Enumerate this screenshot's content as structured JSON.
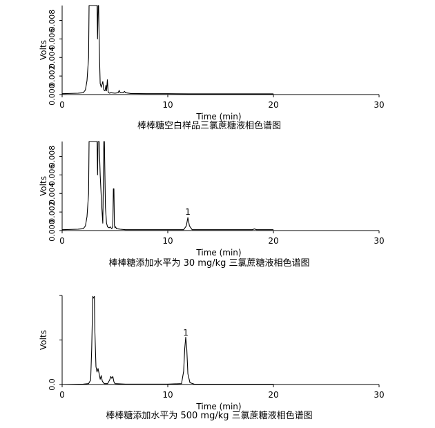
{
  "chart_data": [
    {
      "type": "line",
      "xlabel": "Time (min)",
      "ylabel": "Volts",
      "caption": "棒棒糖空白样品三氯蔗糖液相色谱图",
      "xlim": [
        0,
        30
      ],
      "xticks": [
        "0",
        "10",
        "20",
        "30"
      ],
      "ylim": [
        0,
        0.0096
      ],
      "yticks": [
        "0.000",
        "0.002",
        "0.004",
        "0.006",
        "0.008"
      ],
      "ytick_values": [
        0,
        0.002,
        0.004,
        0.006,
        0.008
      ],
      "peak_labels": [],
      "series": [
        {
          "x": [
            0,
            1.5,
            2.0,
            2.2,
            2.35,
            2.5,
            2.55,
            3.3,
            3.35,
            3.4,
            3.45,
            3.5,
            3.55,
            3.6,
            3.7,
            3.85,
            3.95,
            4.05,
            4.15,
            4.2,
            4.28,
            4.35,
            4.4,
            4.5,
            4.6,
            5.0,
            5.3,
            5.4,
            5.5,
            5.8,
            5.9,
            6.0,
            6.5,
            8.0,
            10.0,
            12.0,
            15.0,
            18.0,
            20.0
          ],
          "y": [
            0.0001,
            0.00015,
            0.0002,
            0.0005,
            0.0015,
            0.004,
            0.0096,
            0.0096,
            0.006,
            0.0096,
            0.0096,
            0.006,
            0.0035,
            0.0012,
            0.0008,
            0.0014,
            0.0005,
            0.0004,
            0.001,
            0.0004,
            0.0016,
            0.0003,
            0.0002,
            0.00015,
            0.0002,
            0.00015,
            0.0002,
            0.00045,
            0.0002,
            0.0002,
            0.00035,
            0.0002,
            0.00012,
            0.0001,
            0.0001,
            8e-05,
            8e-05,
            8e-05,
            8e-05
          ]
        }
      ]
    },
    {
      "type": "line",
      "xlabel": "Time (min)",
      "ylabel": "Volts",
      "caption": "棒棒糖添加水平为 30 mg/kg 三氯蔗糖液相色谱图",
      "xlim": [
        0,
        30
      ],
      "xticks": [
        "0",
        "10",
        "20",
        "30"
      ],
      "ylim": [
        0,
        0.0096
      ],
      "yticks": [
        "0.000",
        "0.002",
        "0.004",
        "0.006",
        "0.008"
      ],
      "ytick_values": [
        0,
        0.002,
        0.004,
        0.006,
        0.008
      ],
      "peak_labels": [
        {
          "text": "1",
          "x": 11.9,
          "y": 0.0014
        }
      ],
      "series": [
        {
          "x": [
            0,
            1.5,
            2.0,
            2.2,
            2.35,
            2.5,
            2.55,
            3.3,
            3.35,
            3.4,
            3.5,
            3.6,
            3.75,
            3.85,
            3.95,
            4.0,
            4.1,
            4.2,
            4.3,
            4.45,
            4.55,
            4.62,
            4.7,
            4.8,
            4.85,
            4.9,
            4.95,
            5.0,
            5.05,
            5.15,
            5.5,
            6.0,
            8.0,
            10.0,
            11.5,
            11.75,
            11.9,
            12.05,
            12.3,
            14.0,
            16.0,
            18.0,
            18.2,
            18.4,
            20.0
          ],
          "y": [
            0.0001,
            0.00015,
            0.0002,
            0.0005,
            0.0015,
            0.004,
            0.0096,
            0.0096,
            0.006,
            0.0096,
            0.0096,
            0.006,
            0.0025,
            0.0008,
            0.0096,
            0.0096,
            0.0025,
            0.0008,
            0.0004,
            0.0003,
            0.0004,
            0.0003,
            0.0002,
            0.0005,
            0.0045,
            0.0045,
            0.0006,
            0.0003,
            0.0004,
            0.0002,
            0.00015,
            0.0001,
            0.0001,
            0.0001,
            0.0001,
            0.0005,
            0.0014,
            0.0005,
            0.0001,
            0.0001,
            0.0001,
            0.0001,
            0.00018,
            0.0001,
            0.0001
          ]
        }
      ]
    },
    {
      "type": "line",
      "xlabel": "Time (min)",
      "ylabel": "Volts",
      "caption": "棒棒糖添加水平为 500 mg/kg 三氯蔗糖液相色谱图",
      "xlim": [
        0,
        30
      ],
      "xticks": [
        "0",
        "10",
        "20",
        "30"
      ],
      "ylim": [
        0,
        1
      ],
      "yticks": [
        "0.0"
      ],
      "ytick_values": [
        0
      ],
      "ytick_marks": [
        0,
        0.5,
        1.0
      ],
      "peak_labels": [
        {
          "text": "1",
          "x": 11.7,
          "y": 0.52
        }
      ],
      "series": [
        {
          "x": [
            0,
            2.0,
            2.5,
            2.7,
            2.8,
            2.9,
            2.95,
            3.05,
            3.1,
            3.2,
            3.3,
            3.4,
            3.5,
            3.6,
            3.7,
            3.8,
            3.9,
            4.0,
            4.3,
            4.5,
            4.6,
            4.7,
            4.8,
            4.9,
            5.0,
            6.0,
            10.0,
            11.3,
            11.5,
            11.6,
            11.7,
            11.8,
            11.9,
            12.1,
            12.5,
            15.0,
            20.0
          ],
          "y": [
            0,
            0.005,
            0.01,
            0.05,
            0.4,
            0.99,
            0.97,
            0.99,
            0.6,
            0.2,
            0.14,
            0.18,
            0.12,
            0.06,
            0.1,
            0.04,
            0.02,
            0.01,
            0.01,
            0.05,
            0.09,
            0.07,
            0.09,
            0.03,
            0.01,
            0.005,
            0.005,
            0.01,
            0.15,
            0.4,
            0.53,
            0.4,
            0.12,
            0.02,
            0.005,
            0.003,
            0.003
          ]
        }
      ]
    }
  ]
}
